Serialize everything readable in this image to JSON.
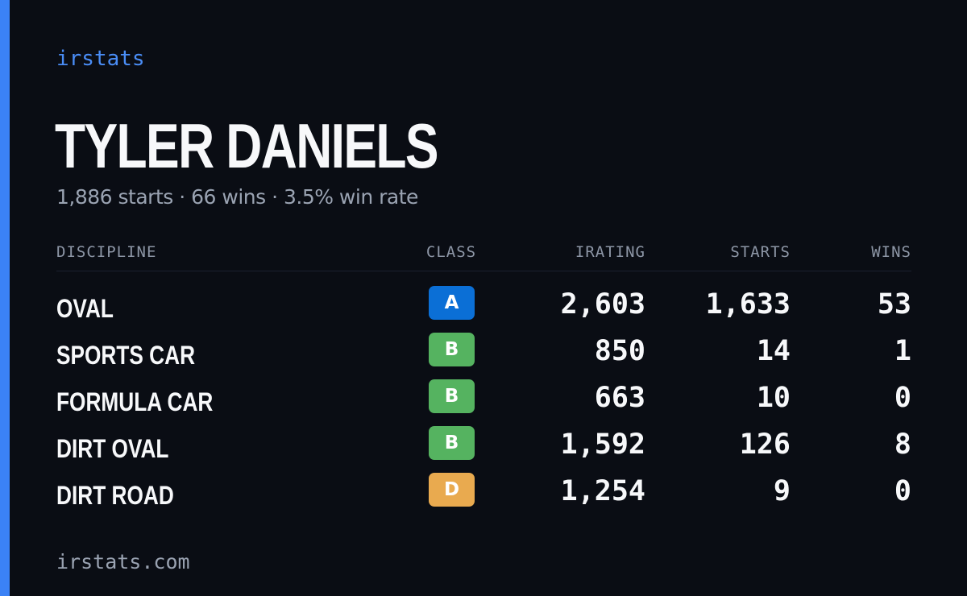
{
  "brand": "irstats",
  "driver": {
    "name": "TYLER DANIELS",
    "summary": "1,886 starts · 66 wins · 3.5% win rate"
  },
  "table": {
    "headers": {
      "discipline": "DISCIPLINE",
      "class": "CLASS",
      "irating": "IRATING",
      "starts": "STARTS",
      "wins": "WINS"
    },
    "rows": [
      {
        "discipline": "OVAL",
        "class": "A",
        "irating": "2,603",
        "starts": "1,633",
        "wins": "53"
      },
      {
        "discipline": "SPORTS CAR",
        "class": "B",
        "irating": "850",
        "starts": "14",
        "wins": "1"
      },
      {
        "discipline": "FORMULA CAR",
        "class": "B",
        "irating": "663",
        "starts": "10",
        "wins": "0"
      },
      {
        "discipline": "DIRT OVAL",
        "class": "B",
        "irating": "1,592",
        "starts": "126",
        "wins": "8"
      },
      {
        "discipline": "DIRT ROAD",
        "class": "D",
        "irating": "1,254",
        "starts": "9",
        "wins": "0"
      }
    ]
  },
  "class_colors": {
    "A": "#0b6fd6",
    "B": "#55b360",
    "D": "#e9aa4f"
  },
  "footer": "irstats.com",
  "colors": {
    "background": "#0a0d14",
    "accent": "#3b82f6"
  }
}
